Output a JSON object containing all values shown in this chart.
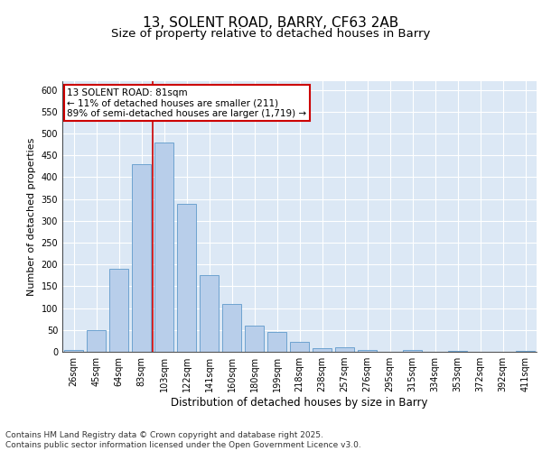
{
  "title": "13, SOLENT ROAD, BARRY, CF63 2AB",
  "subtitle": "Size of property relative to detached houses in Barry",
  "xlabel": "Distribution of detached houses by size in Barry",
  "ylabel": "Number of detached properties",
  "categories": [
    "26sqm",
    "45sqm",
    "64sqm",
    "83sqm",
    "103sqm",
    "122sqm",
    "141sqm",
    "160sqm",
    "180sqm",
    "199sqm",
    "218sqm",
    "238sqm",
    "257sqm",
    "276sqm",
    "295sqm",
    "315sqm",
    "334sqm",
    "353sqm",
    "372sqm",
    "392sqm",
    "411sqm"
  ],
  "values": [
    4,
    50,
    190,
    430,
    480,
    338,
    175,
    110,
    60,
    45,
    22,
    8,
    10,
    5,
    0,
    5,
    0,
    3,
    0,
    0,
    3
  ],
  "bar_color": "#b8ceea",
  "bar_edge_color": "#6ea3d0",
  "background_color": "#dce8f5",
  "grid_color": "#ffffff",
  "vline_color": "#cc0000",
  "vline_index": 3.5,
  "annotation_text": "13 SOLENT ROAD: 81sqm\n← 11% of detached houses are smaller (211)\n89% of semi-detached houses are larger (1,719) →",
  "annotation_box_edgecolor": "#cc0000",
  "ylim": [
    0,
    620
  ],
  "yticks": [
    0,
    50,
    100,
    150,
    200,
    250,
    300,
    350,
    400,
    450,
    500,
    550,
    600
  ],
  "footnote": "Contains HM Land Registry data © Crown copyright and database right 2025.\nContains public sector information licensed under the Open Government Licence v3.0.",
  "title_fontsize": 11,
  "subtitle_fontsize": 9.5,
  "xlabel_fontsize": 8.5,
  "ylabel_fontsize": 8,
  "tick_fontsize": 7,
  "annotation_fontsize": 7.5,
  "footnote_fontsize": 6.5
}
